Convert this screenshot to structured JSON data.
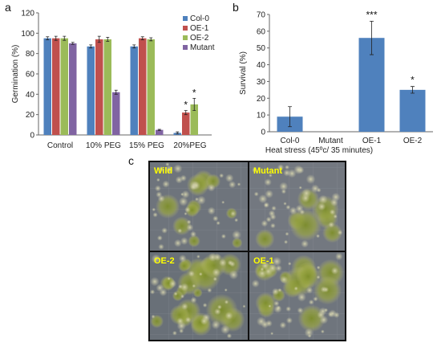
{
  "panels": {
    "a": "a",
    "b": "b",
    "c": "c"
  },
  "chart_data": [
    {
      "type": "bar",
      "panel": "a",
      "categories": [
        "Control",
        "10% PEG",
        "15% PEG",
        "20%PEG"
      ],
      "ylabel": "Germination (%)",
      "ylim": [
        0,
        120
      ],
      "yticks": [
        0,
        20,
        40,
        60,
        80,
        100,
        120
      ],
      "legend_position": "top-right",
      "series": [
        {
          "name": "Col-0",
          "color": "#4f81bd",
          "values": [
            95,
            87,
            87,
            2
          ],
          "errors": [
            1.5,
            1.5,
            1.5,
            1
          ]
        },
        {
          "name": "OE-1",
          "color": "#c0504d",
          "values": [
            95,
            94,
            95,
            22
          ],
          "errors": [
            2,
            3,
            1.5,
            2
          ]
        },
        {
          "name": "OE-2",
          "color": "#9bbb59",
          "values": [
            95,
            94,
            94,
            30
          ],
          "errors": [
            2,
            2,
            1.5,
            6
          ]
        },
        {
          "name": "Mutant",
          "color": "#8064a2",
          "values": [
            90,
            42,
            5,
            0
          ],
          "errors": [
            1,
            2,
            0.5,
            0
          ]
        }
      ],
      "annotations": [
        {
          "category": "20%PEG",
          "series": "OE-1",
          "text": "*"
        },
        {
          "category": "20%PEG",
          "series": "OE-2",
          "text": "*"
        }
      ]
    },
    {
      "type": "bar",
      "panel": "b",
      "categories": [
        "Col-0",
        "Mutant",
        "OE-1",
        "OE-2"
      ],
      "values": [
        9,
        0,
        56,
        25
      ],
      "errors": [
        6,
        0,
        10,
        2
      ],
      "color": "#4f81bd",
      "xlabel": "Heat stress (45ºc/ 35 minutes)",
      "ylabel": "Survival (%)",
      "ylim": [
        0,
        70
      ],
      "yticks": [
        0,
        10,
        20,
        30,
        40,
        50,
        60,
        70
      ],
      "annotations": [
        {
          "category": "OE-1",
          "text": "***"
        },
        {
          "category": "OE-2",
          "text": "*"
        }
      ]
    }
  ],
  "photo_panel": {
    "labels": [
      "Wild",
      "Mutant",
      "OE-2",
      "OE-1"
    ]
  }
}
